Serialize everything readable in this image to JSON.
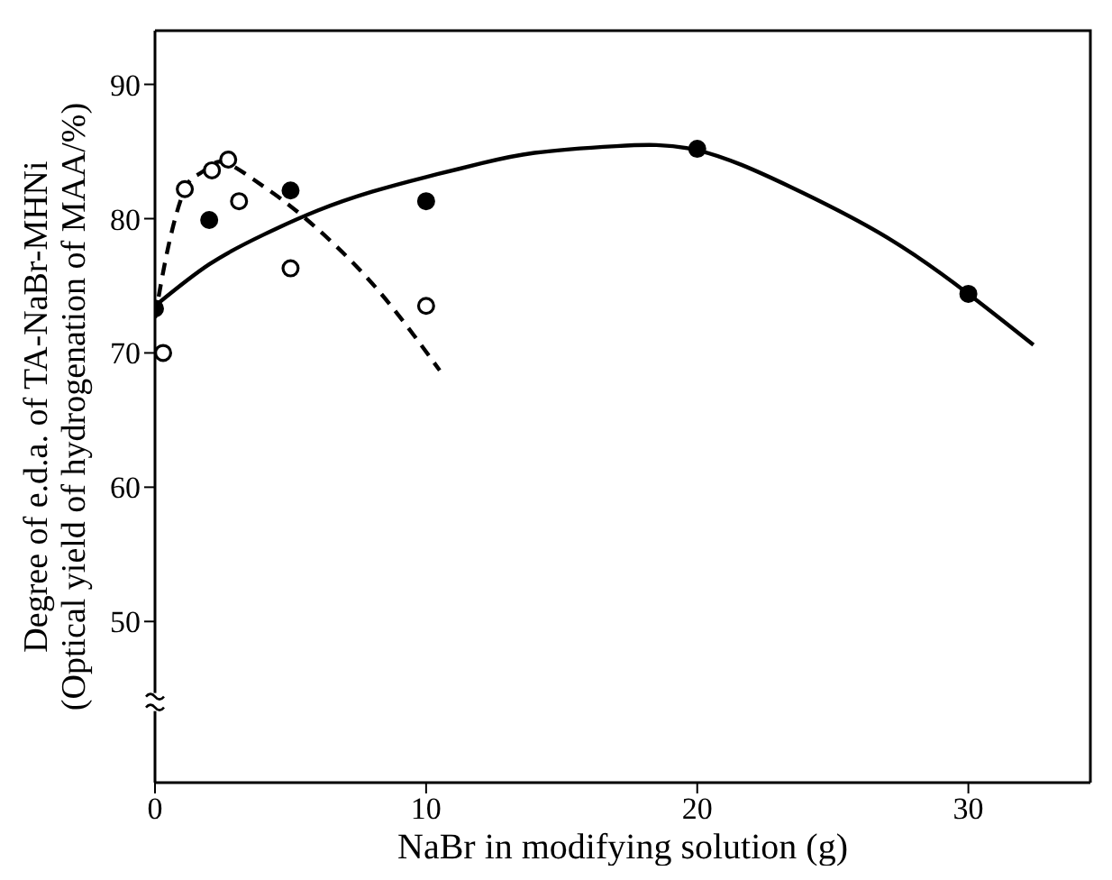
{
  "chart_data": {
    "type": "scatter",
    "xlabel": "NaBr in modifying solution (g)",
    "ylabel": "Degree of e.d.a. of TA-NaBr-MHNi\n(Optical yield of hydrogenation of MAA/%)",
    "xlim": [
      0,
      34.5
    ],
    "xticks": [
      0,
      10,
      20,
      30
    ],
    "ylim": [
      38,
      94
    ],
    "yticks": [
      50,
      60,
      70,
      80,
      90
    ],
    "series": [
      {
        "color": "#000000",
        "marker": "circle",
        "x": [
          0,
          2,
          5,
          10,
          20,
          30
        ],
        "values": [
          73.3,
          79.9,
          82.1,
          81.3,
          85.2,
          74.4
        ]
      },
      {
        "color": "#ffffff",
        "marker": "circle",
        "x": [
          0.3,
          1.1,
          2.1,
          2.7,
          3.1,
          5,
          10
        ],
        "values": [
          70.0,
          82.2,
          83.6,
          84.4,
          81.3,
          76.3,
          73.5
        ]
      },
      {
        "type": "line",
        "color": "#000000",
        "marker": "none",
        "line_style": "solid",
        "x": [
          0,
          2,
          4,
          6,
          8,
          10,
          12,
          14,
          17,
          20,
          23.4,
          27,
          30,
          32.4
        ],
        "values": [
          73.5,
          76.6,
          78.8,
          80.6,
          82.0,
          83.1,
          84.1,
          84.9,
          85.4,
          85.1,
          82.4,
          78.6,
          74.4,
          70.6
        ]
      },
      {
        "type": "line",
        "color": "#000000",
        "marker": "none",
        "line_style": "dashed",
        "x": [
          0,
          0.5,
          1.1,
          1.6,
          2.1,
          2.7,
          4,
          5.5,
          8,
          10.5
        ],
        "values": [
          72.6,
          78,
          82.2,
          83.3,
          84.0,
          84.1,
          82.4,
          80.1,
          75.2,
          68.7
        ]
      }
    ]
  }
}
